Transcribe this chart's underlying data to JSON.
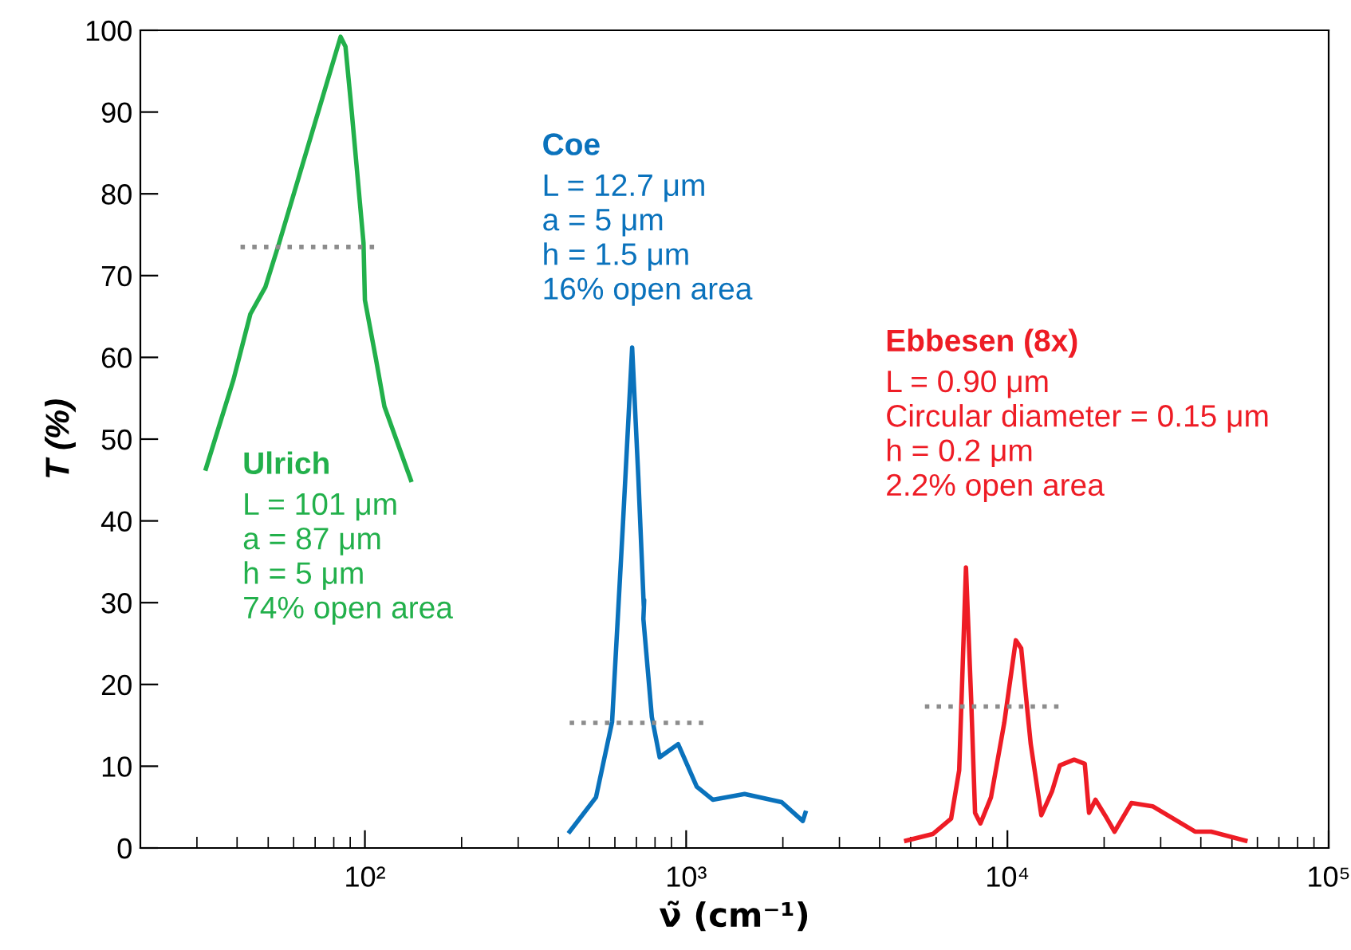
{
  "chart_data": {
    "type": "line",
    "xlabel": "ν̃ (cm⁻¹)",
    "ylabel": "T (%)",
    "log": "x",
    "grid": false,
    "legend": false,
    "xlim": [
      20,
      100000
    ],
    "ylim": [
      0,
      100
    ],
    "xticks": [
      {
        "value": 100,
        "label": "10²"
      },
      {
        "value": 1000,
        "label": "10³"
      },
      {
        "value": 10000,
        "label": "10⁴"
      },
      {
        "value": 100000,
        "label": "10⁵"
      }
    ],
    "yticks": [
      0,
      10,
      20,
      30,
      40,
      50,
      60,
      70,
      80,
      90,
      100
    ],
    "series": [
      {
        "name": "Ulrich",
        "color": "#22b04b",
        "x": [
          32,
          39,
          44,
          49,
          54,
          84,
          87,
          91,
          99,
          100,
          108,
          115,
          139
        ],
        "values": [
          46.4,
          57.3,
          65.3,
          68.6,
          73.9,
          99.2,
          98,
          90,
          74,
          67,
          60,
          54,
          45
        ]
      },
      {
        "name": "Coe",
        "color": "#0a72bc",
        "x": [
          434,
          524,
          588,
          634,
          679,
          710,
          738,
          740,
          736,
          782,
          827,
          944,
          1079,
          1210,
          1520,
          1983,
          2307,
          2350
        ],
        "values": [
          2.0,
          6.2,
          15.4,
          38.8,
          61.2,
          45.2,
          29.6,
          30.3,
          28.0,
          16.0,
          11.1,
          12.7,
          7.5,
          5.9,
          6.6,
          5.6,
          3.3,
          4.3
        ]
      },
      {
        "name": "Ebbesen (8x)",
        "color": "#ee1c25",
        "x": [
          4842,
          5853,
          6680,
          7077,
          7430,
          7716,
          7930,
          8240,
          8890,
          9775,
          10620,
          11040,
          11820,
          12750,
          13760,
          14560,
          16130,
          17410,
          17950,
          18800,
          20130,
          21550,
          24320,
          28320,
          38370,
          43050,
          55050
        ],
        "values": [
          0.9,
          1.7,
          3.6,
          9.5,
          34.3,
          17.9,
          4.3,
          3.0,
          6.2,
          15.3,
          25.4,
          24.4,
          12.7,
          4.0,
          6.9,
          10.1,
          10.8,
          10.3,
          4.3,
          5.9,
          4.0,
          2.0,
          5.5,
          5.1,
          2.0,
          2.0,
          0.9
        ]
      },
      {
        "color": "#8c8c8c",
        "line_style": "dotted",
        "x": [
          41,
          111
        ],
        "values": [
          73.5,
          73.5
        ]
      },
      {
        "color": "#8c8c8c",
        "line_style": "dotted",
        "x": [
          434,
          1143
        ],
        "values": [
          15.3,
          15.3
        ]
      },
      {
        "color": "#8c8c8c",
        "line_style": "dotted",
        "x": [
          5536,
          14860
        ],
        "values": [
          17.3,
          17.3
        ]
      }
    ],
    "annotations": [
      "L = 101 μm\na = 87 μm\nh = 5 μm\n74% open area",
      "L = 12.7 μm\na = 5 μm\nh = 1.5 μm\n16% open area",
      "L = 0.90 μm\nCircular diameter = 0.15 μm\nh = 0.2 μm\n2.2% open area"
    ]
  }
}
